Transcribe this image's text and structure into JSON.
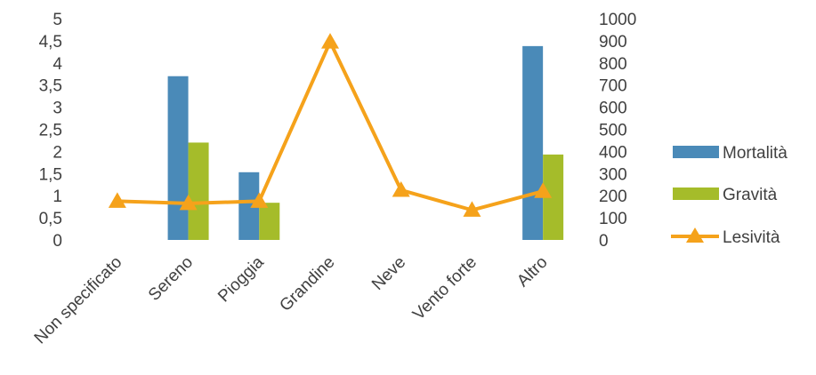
{
  "chart_data": {
    "type": "bar",
    "categories": [
      "Non specificato",
      "Sereno",
      "Pioggia",
      "Grandine",
      "Neve",
      "Vento forte",
      "Altro"
    ],
    "series": [
      {
        "name": "Mortalità",
        "type": "bar",
        "axis": "left",
        "color": "#4a8ab8",
        "values": [
          0,
          3.7,
          1.53,
          0,
          0,
          0,
          4.38
        ]
      },
      {
        "name": "Gravità",
        "type": "bar",
        "axis": "left",
        "color": "#a5bc2a",
        "values": [
          0,
          2.2,
          0.84,
          0,
          0,
          0,
          1.93
        ]
      },
      {
        "name": "Lesività",
        "type": "line",
        "axis": "right",
        "color": "#f5a21b",
        "marker": "triangle",
        "values": [
          175,
          165,
          175,
          895,
          225,
          135,
          220
        ]
      }
    ],
    "yleft": {
      "min": 0,
      "max": 5,
      "ticks": [
        "0",
        "0,5",
        "1",
        "1,5",
        "2",
        "2,5",
        "3",
        "3,5",
        "4",
        "4,5",
        "5"
      ]
    },
    "yright": {
      "min": 0,
      "max": 1000,
      "ticks": [
        "0",
        "100",
        "200",
        "300",
        "400",
        "500",
        "600",
        "700",
        "800",
        "900",
        "1000"
      ]
    },
    "legend_position": "right",
    "grid": false
  }
}
